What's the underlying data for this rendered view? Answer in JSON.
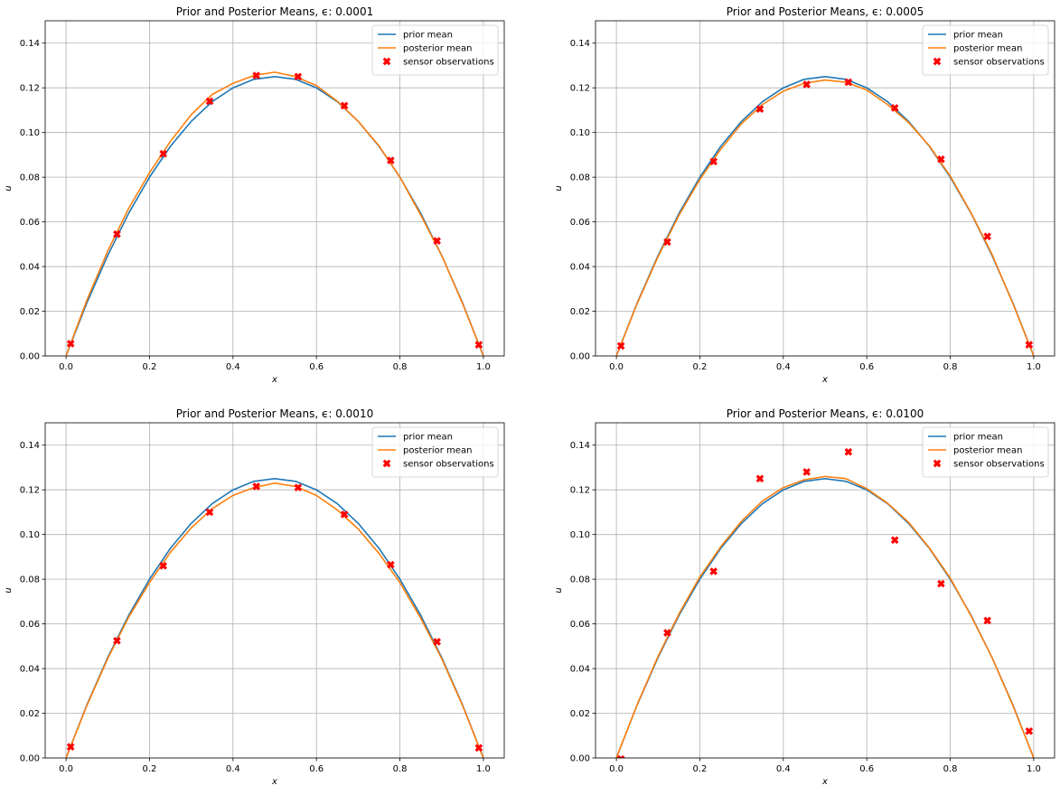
{
  "figure": {
    "background": "#ffffff"
  },
  "colors": {
    "prior": "#1f77b4",
    "posterior": "#ff7f0e",
    "sensor": "#ff0000",
    "grid": "#b0b0b0",
    "axes": "#000000"
  },
  "chart_data": [
    {
      "type": "line",
      "title": "Prior and Posterior Means, ϵ: 0.0001",
      "xlabel": "x",
      "ylabel": "u",
      "xlim": [
        -0.05,
        1.05
      ],
      "ylim": [
        0,
        0.15
      ],
      "xticks": [
        0.0,
        0.2,
        0.4,
        0.6,
        0.8,
        1.0
      ],
      "xtick_labels": [
        "0.0",
        "0.2",
        "0.4",
        "0.6",
        "0.8",
        "1.0"
      ],
      "yticks": [
        0.0,
        0.02,
        0.04,
        0.06,
        0.08,
        0.1,
        0.12,
        0.14
      ],
      "ytick_labels": [
        "0.00",
        "0.02",
        "0.04",
        "0.06",
        "0.08",
        "0.10",
        "0.12",
        "0.14"
      ],
      "grid": true,
      "legend_position": "upper right",
      "legend": [
        "prior mean",
        "posterior mean",
        "sensor observations"
      ],
      "series": [
        {
          "name": "prior mean",
          "kind": "line",
          "x": [
            0.0,
            0.05,
            0.1,
            0.15,
            0.2,
            0.25,
            0.3,
            0.35,
            0.4,
            0.45,
            0.5,
            0.55,
            0.6,
            0.65,
            0.7,
            0.75,
            0.8,
            0.85,
            0.9,
            0.95,
            1.0
          ],
          "y": [
            0.0,
            0.0238,
            0.045,
            0.0638,
            0.08,
            0.0938,
            0.105,
            0.1138,
            0.12,
            0.1238,
            0.125,
            0.1238,
            0.12,
            0.1138,
            0.105,
            0.0938,
            0.08,
            0.0638,
            0.045,
            0.0238,
            0.0
          ]
        },
        {
          "name": "posterior mean",
          "kind": "line",
          "x": [
            0.0,
            0.05,
            0.1,
            0.15,
            0.2,
            0.25,
            0.3,
            0.35,
            0.4,
            0.45,
            0.5,
            0.55,
            0.6,
            0.65,
            0.7,
            0.75,
            0.8,
            0.85,
            0.9,
            0.95,
            1.0
          ],
          "y": [
            0.0,
            0.025,
            0.047,
            0.066,
            0.082,
            0.096,
            0.108,
            0.117,
            0.122,
            0.1255,
            0.127,
            0.125,
            0.121,
            0.114,
            0.105,
            0.094,
            0.08,
            0.063,
            0.045,
            0.0235,
            0.0
          ]
        },
        {
          "name": "sensor observations",
          "kind": "scatter",
          "x": [
            0.011,
            0.122,
            0.233,
            0.344,
            0.456,
            0.556,
            0.667,
            0.778,
            0.889,
            0.989
          ],
          "y": [
            0.0055,
            0.0545,
            0.0905,
            0.114,
            0.1255,
            0.125,
            0.112,
            0.0875,
            0.0515,
            0.005
          ]
        }
      ]
    },
    {
      "type": "line",
      "title": "Prior and Posterior Means, ϵ: 0.0005",
      "xlabel": "x",
      "ylabel": "u",
      "xlim": [
        -0.05,
        1.05
      ],
      "ylim": [
        0,
        0.15
      ],
      "xticks": [
        0.0,
        0.2,
        0.4,
        0.6,
        0.8,
        1.0
      ],
      "xtick_labels": [
        "0.0",
        "0.2",
        "0.4",
        "0.6",
        "0.8",
        "1.0"
      ],
      "yticks": [
        0.0,
        0.02,
        0.04,
        0.06,
        0.08,
        0.1,
        0.12,
        0.14
      ],
      "ytick_labels": [
        "0.00",
        "0.02",
        "0.04",
        "0.06",
        "0.08",
        "0.10",
        "0.12",
        "0.14"
      ],
      "grid": true,
      "legend_position": "upper right",
      "legend": [
        "prior mean",
        "posterior mean",
        "sensor observations"
      ],
      "series": [
        {
          "name": "prior mean",
          "kind": "line",
          "x": [
            0.0,
            0.05,
            0.1,
            0.15,
            0.2,
            0.25,
            0.3,
            0.35,
            0.4,
            0.45,
            0.5,
            0.55,
            0.6,
            0.65,
            0.7,
            0.75,
            0.8,
            0.85,
            0.9,
            0.95,
            1.0
          ],
          "y": [
            0.0,
            0.0238,
            0.045,
            0.0638,
            0.08,
            0.0938,
            0.105,
            0.1138,
            0.12,
            0.1238,
            0.125,
            0.1238,
            0.12,
            0.1138,
            0.105,
            0.0938,
            0.08,
            0.0638,
            0.045,
            0.0238,
            0.0
          ]
        },
        {
          "name": "posterior mean",
          "kind": "line",
          "x": [
            0.0,
            0.05,
            0.1,
            0.15,
            0.2,
            0.25,
            0.3,
            0.35,
            0.4,
            0.45,
            0.5,
            0.55,
            0.6,
            0.65,
            0.7,
            0.75,
            0.8,
            0.85,
            0.9,
            0.95,
            1.0
          ],
          "y": [
            0.0,
            0.0235,
            0.0445,
            0.063,
            0.079,
            0.0925,
            0.104,
            0.1125,
            0.1185,
            0.122,
            0.1235,
            0.1225,
            0.119,
            0.1125,
            0.1045,
            0.094,
            0.0805,
            0.064,
            0.0455,
            0.0235,
            0.0
          ]
        },
        {
          "name": "sensor observations",
          "kind": "scatter",
          "x": [
            0.011,
            0.122,
            0.233,
            0.344,
            0.456,
            0.556,
            0.667,
            0.778,
            0.889,
            0.989
          ],
          "y": [
            0.0045,
            0.051,
            0.087,
            0.1105,
            0.1215,
            0.1225,
            0.111,
            0.088,
            0.0535,
            0.005
          ]
        }
      ]
    },
    {
      "type": "line",
      "title": "Prior and Posterior Means, ϵ: 0.0010",
      "xlabel": "x",
      "ylabel": "u",
      "xlim": [
        -0.05,
        1.05
      ],
      "ylim": [
        0,
        0.15
      ],
      "xticks": [
        0.0,
        0.2,
        0.4,
        0.6,
        0.8,
        1.0
      ],
      "xtick_labels": [
        "0.0",
        "0.2",
        "0.4",
        "0.6",
        "0.8",
        "1.0"
      ],
      "yticks": [
        0.0,
        0.02,
        0.04,
        0.06,
        0.08,
        0.1,
        0.12,
        0.14
      ],
      "ytick_labels": [
        "0.00",
        "0.02",
        "0.04",
        "0.06",
        "0.08",
        "0.10",
        "0.12",
        "0.14"
      ],
      "grid": true,
      "legend_position": "upper right",
      "legend": [
        "prior mean",
        "posterior mean",
        "sensor observations"
      ],
      "series": [
        {
          "name": "prior mean",
          "kind": "line",
          "x": [
            0.0,
            0.05,
            0.1,
            0.15,
            0.2,
            0.25,
            0.3,
            0.35,
            0.4,
            0.45,
            0.5,
            0.55,
            0.6,
            0.65,
            0.7,
            0.75,
            0.8,
            0.85,
            0.9,
            0.95,
            1.0
          ],
          "y": [
            0.0,
            0.0238,
            0.045,
            0.0638,
            0.08,
            0.0938,
            0.105,
            0.1138,
            0.12,
            0.1238,
            0.125,
            0.1238,
            0.12,
            0.1138,
            0.105,
            0.0938,
            0.08,
            0.0638,
            0.045,
            0.0238,
            0.0
          ]
        },
        {
          "name": "posterior mean",
          "kind": "line",
          "x": [
            0.0,
            0.05,
            0.1,
            0.15,
            0.2,
            0.25,
            0.3,
            0.35,
            0.4,
            0.45,
            0.5,
            0.55,
            0.6,
            0.65,
            0.7,
            0.75,
            0.8,
            0.85,
            0.9,
            0.95,
            1.0
          ],
          "y": [
            0.0,
            0.0235,
            0.0445,
            0.063,
            0.0785,
            0.092,
            0.103,
            0.1115,
            0.1175,
            0.121,
            0.123,
            0.1215,
            0.1175,
            0.111,
            0.1025,
            0.0915,
            0.0785,
            0.0625,
            0.0445,
            0.0235,
            0.0
          ]
        },
        {
          "name": "sensor observations",
          "kind": "scatter",
          "x": [
            0.011,
            0.122,
            0.233,
            0.344,
            0.456,
            0.556,
            0.667,
            0.778,
            0.889,
            0.989
          ],
          "y": [
            0.005,
            0.0525,
            0.086,
            0.11,
            0.1215,
            0.121,
            0.109,
            0.0865,
            0.052,
            0.0045
          ]
        }
      ]
    },
    {
      "type": "line",
      "title": "Prior and Posterior Means, ϵ: 0.0100",
      "xlabel": "x",
      "ylabel": "u",
      "xlim": [
        -0.05,
        1.05
      ],
      "ylim": [
        0,
        0.15
      ],
      "xticks": [
        0.0,
        0.2,
        0.4,
        0.6,
        0.8,
        1.0
      ],
      "xtick_labels": [
        "0.0",
        "0.2",
        "0.4",
        "0.6",
        "0.8",
        "1.0"
      ],
      "yticks": [
        0.0,
        0.02,
        0.04,
        0.06,
        0.08,
        0.1,
        0.12,
        0.14
      ],
      "ytick_labels": [
        "0.00",
        "0.02",
        "0.04",
        "0.06",
        "0.08",
        "0.10",
        "0.12",
        "0.14"
      ],
      "grid": true,
      "legend_position": "upper right",
      "legend": [
        "prior mean",
        "posterior mean",
        "sensor observations"
      ],
      "series": [
        {
          "name": "prior mean",
          "kind": "line",
          "x": [
            0.0,
            0.05,
            0.1,
            0.15,
            0.2,
            0.25,
            0.3,
            0.35,
            0.4,
            0.45,
            0.5,
            0.55,
            0.6,
            0.65,
            0.7,
            0.75,
            0.8,
            0.85,
            0.9,
            0.95,
            1.0
          ],
          "y": [
            0.0,
            0.0238,
            0.045,
            0.0638,
            0.08,
            0.0938,
            0.105,
            0.1138,
            0.12,
            0.1238,
            0.125,
            0.1238,
            0.12,
            0.1138,
            0.105,
            0.0938,
            0.08,
            0.0638,
            0.045,
            0.0238,
            0.0
          ]
        },
        {
          "name": "posterior mean",
          "kind": "line",
          "x": [
            0.0,
            0.05,
            0.1,
            0.15,
            0.2,
            0.25,
            0.3,
            0.35,
            0.4,
            0.45,
            0.5,
            0.55,
            0.6,
            0.65,
            0.7,
            0.75,
            0.8,
            0.85,
            0.9,
            0.95,
            1.0
          ],
          "y": [
            0.0,
            0.024,
            0.0455,
            0.0645,
            0.081,
            0.0945,
            0.106,
            0.115,
            0.121,
            0.1245,
            0.126,
            0.125,
            0.1205,
            0.114,
            0.1055,
            0.094,
            0.0805,
            0.0635,
            0.045,
            0.0235,
            0.0
          ]
        },
        {
          "name": "sensor observations",
          "kind": "scatter",
          "x": [
            0.011,
            0.122,
            0.233,
            0.344,
            0.456,
            0.556,
            0.667,
            0.778,
            0.889,
            0.989
          ],
          "y": [
            -0.0005,
            0.056,
            0.0835,
            0.125,
            0.128,
            0.137,
            0.0975,
            0.078,
            0.0615,
            0.012
          ]
        }
      ]
    }
  ]
}
